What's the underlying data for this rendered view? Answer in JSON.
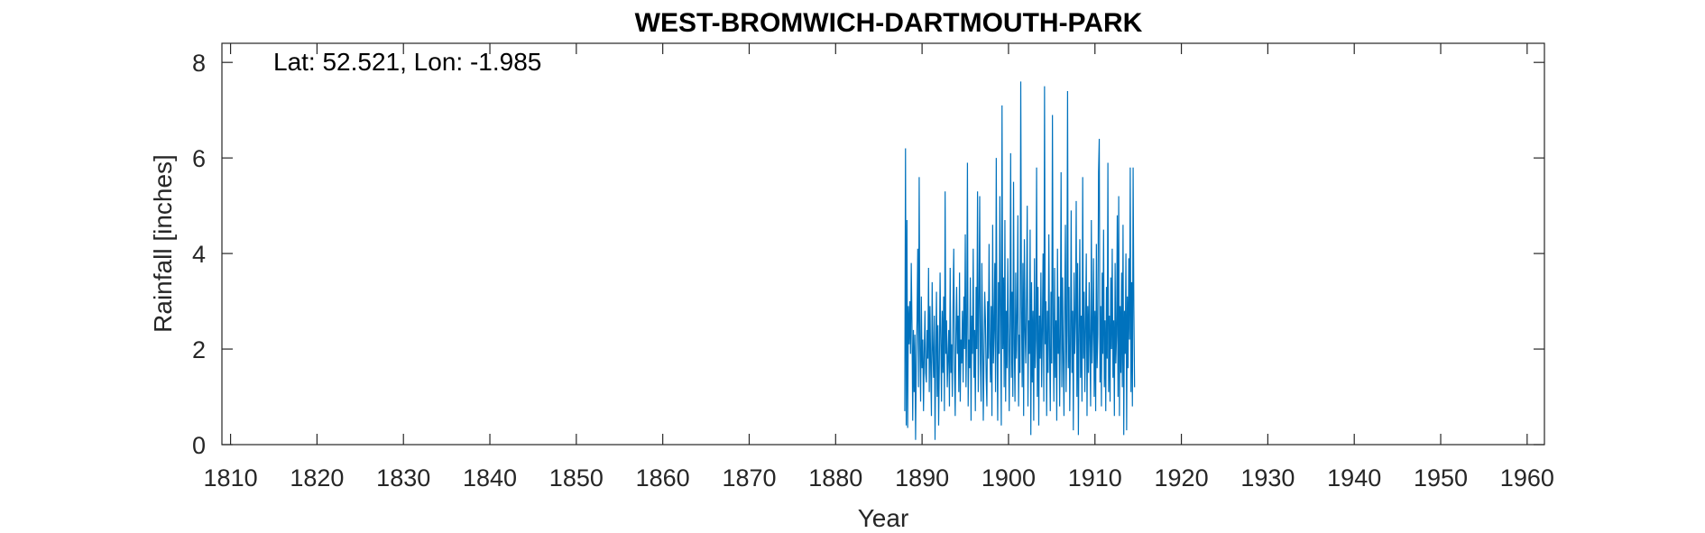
{
  "chart_data": {
    "type": "line",
    "title": "WEST-BROMWICH-DARTMOUTH-PARK",
    "annotation": "Lat: 52.521, Lon: -1.985",
    "xlabel": "Year",
    "ylabel": "Rainfall [inches]",
    "xlim": [
      1809,
      1962
    ],
    "ylim": [
      0,
      8.4
    ],
    "xticks": [
      1810,
      1820,
      1830,
      1840,
      1850,
      1860,
      1870,
      1880,
      1890,
      1900,
      1910,
      1920,
      1930,
      1940,
      1950,
      1960
    ],
    "yticks": [
      0,
      2,
      4,
      6,
      8
    ],
    "grid": false,
    "legend": "none",
    "series_color": "#0072BD",
    "series": [
      {
        "x_start": 1888.0,
        "x_step": 0.0833333,
        "values": [
          0.7,
          6.2,
          0.4,
          4.7,
          0.35,
          2.9,
          2.1,
          3.0,
          1.9,
          3.8,
          2.5,
          0.5,
          2.4,
          1.1,
          2.3,
          0.1,
          1.8,
          2.6,
          4.1,
          1.2,
          5.6,
          2.0,
          0.9,
          3.1,
          1.6,
          2.2,
          0.7,
          1.9,
          2.8,
          1.5,
          1.3,
          2.4,
          1.8,
          3.7,
          1.1,
          2.9,
          1.6,
          0.6,
          3.4,
          2.0,
          1.4,
          2.7,
          0.1,
          1.9,
          3.2,
          1.0,
          2.5,
          0.4,
          1.7,
          3.6,
          2.2,
          0.9,
          2.8,
          1.5,
          3.1,
          0.7,
          5.3,
          1.9,
          2.6,
          1.2,
          1.8,
          2.4,
          0.8,
          3.7,
          1.5,
          2.1,
          1.0,
          2.9,
          4.1,
          1.6,
          0.6,
          2.3,
          3.3,
          1.9,
          2.7,
          1.1,
          3.6,
          0.9,
          2.2,
          1.7,
          2.8,
          1.3,
          3.1,
          2.0,
          4.4,
          1.2,
          2.5,
          5.9,
          0.8,
          2.2,
          1.6,
          3.5,
          0.5,
          2.7,
          1.9,
          4.1,
          1.4,
          2.4,
          0.7,
          3.3,
          2.0,
          5.3,
          1.1,
          2.9,
          5.2,
          1.7,
          0.9,
          3.8,
          2.3,
          0.5,
          1.9,
          3.2,
          2.6,
          1.4,
          0.8,
          3.0,
          1.8,
          4.2,
          2.1,
          1.3,
          2.9,
          0.6,
          4.6,
          1.7,
          2.4,
          3.8,
          1.1,
          6.0,
          2.2,
          0.5,
          3.4,
          1.9,
          5.2,
          2.6,
          0.4,
          7.1,
          2.0,
          3.5,
          1.2,
          4.7,
          0.9,
          2.8,
          1.6,
          3.9,
          2.3,
          0.7,
          2.5,
          6.1,
          1.4,
          3.2,
          1.0,
          5.5,
          2.1,
          0.9,
          3.6,
          1.8,
          2.7,
          4.8,
          0.8,
          2.3,
          1.5,
          7.6,
          2.9,
          1.2,
          3.8,
          0.6,
          4.3,
          2.4,
          1.7,
          3.1,
          5.0,
          0.8,
          2.6,
          1.9,
          4.5,
          0.2,
          3.4,
          1.3,
          2.8,
          0.5,
          3.9,
          1.6,
          2.2,
          5.8,
          1.0,
          3.3,
          0.4,
          2.7,
          1.8,
          3.6,
          1.2,
          2.4,
          4.0,
          0.9,
          7.5,
          2.1,
          3.0,
          0.6,
          2.8,
          1.5,
          4.4,
          2.0,
          0.7,
          3.2,
          1.7,
          6.9,
          2.5,
          0.9,
          3.7,
          1.4,
          2.6,
          0.5,
          4.1,
          1.9,
          3.1,
          0.8,
          2.3,
          5.7,
          1.2,
          3.5,
          1.8,
          0.6,
          2.9,
          4.6,
          1.1,
          2.4,
          7.4,
          1.6,
          3.3,
          0.7,
          2.1,
          4.9,
          1.5,
          2.8,
          0.3,
          3.6,
          1.9,
          2.6,
          5.1,
          1.0,
          3.8,
          0.2,
          2.3,
          4.3,
          1.4,
          2.7,
          0.9,
          5.6,
          1.8,
          3.2,
          1.1,
          2.5,
          4.0,
          0.6,
          2.9,
          1.5,
          3.4,
          2.1,
          0.8,
          4.7,
          1.7,
          2.4,
          3.9,
          1.0,
          2.8,
          0.7,
          4.2,
          1.6,
          2.3,
          5.7,
          6.4,
          1.3,
          2.9,
          0.8,
          3.6,
          1.9,
          4.5,
          1.2,
          2.6,
          0.7,
          3.3,
          1.8,
          5.9,
          1.1,
          2.7,
          0.9,
          3.5,
          2.0,
          4.1,
          1.4,
          2.6,
          0.6,
          3.8,
          1.7,
          2.3,
          4.8,
          1.0,
          5.2,
          0.6,
          2.9,
          1.5,
          3.6,
          1.2,
          4.6,
          0.2,
          2.8,
          1.9,
          4.0,
          0.3,
          3.1,
          1.6,
          3.9,
          2.2,
          5.8,
          1.1,
          3.4,
          0.8,
          5.8,
          2.9,
          1.2
        ]
      }
    ]
  }
}
